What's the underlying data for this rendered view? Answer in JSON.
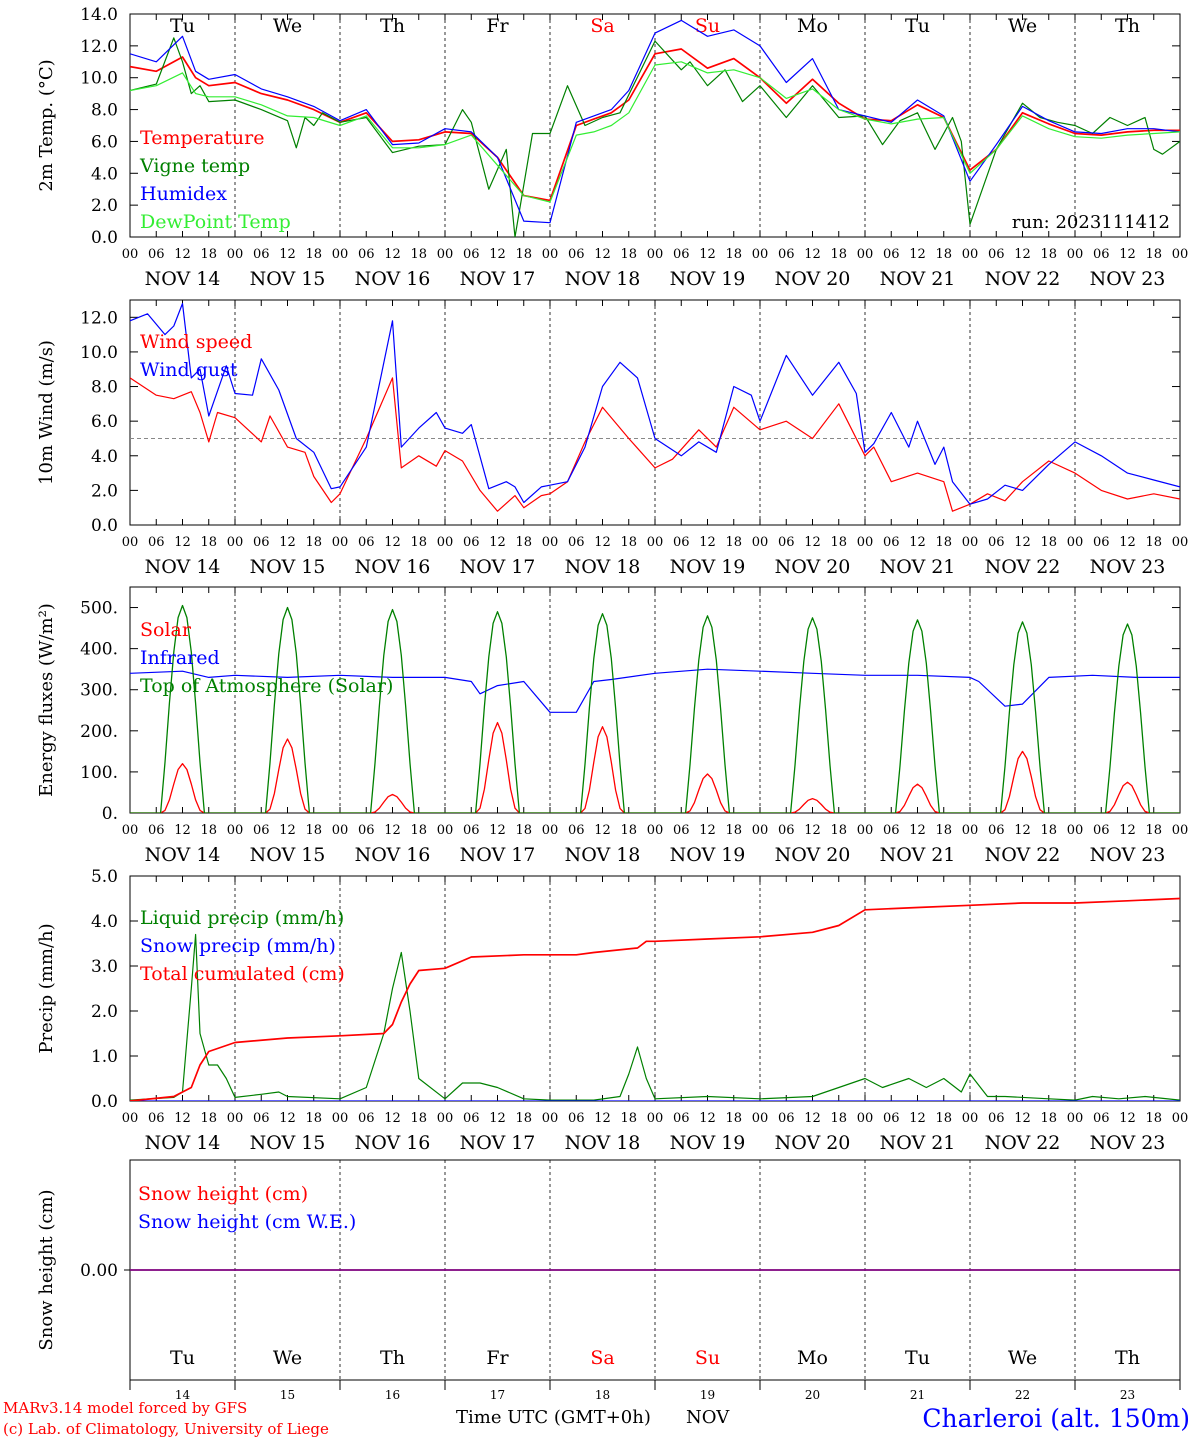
{
  "footer": {
    "credit_line1": "MARv3.14 model forced by GFS",
    "credit_line2": "(c) Lab. of Climatology, University of Liege",
    "xlabel": "Time UTC (GMT+0h)",
    "month": "NOV",
    "station": "Charleroi (alt. 150m)"
  },
  "run_label": "run: 2023111412",
  "days": [
    {
      "abbr": "Tu",
      "date": "NOV 14",
      "num": "14",
      "weekend": false
    },
    {
      "abbr": "We",
      "date": "NOV 15",
      "num": "15",
      "weekend": false
    },
    {
      "abbr": "Th",
      "date": "NOV 16",
      "num": "16",
      "weekend": false
    },
    {
      "abbr": "Fr",
      "date": "NOV 17",
      "num": "17",
      "weekend": false
    },
    {
      "abbr": "Sa",
      "date": "NOV 18",
      "num": "18",
      "weekend": true
    },
    {
      "abbr": "Su",
      "date": "NOV 19",
      "num": "19",
      "weekend": true
    },
    {
      "abbr": "Mo",
      "date": "NOV 20",
      "num": "20",
      "weekend": false
    },
    {
      "abbr": "Tu",
      "date": "NOV 21",
      "num": "21",
      "weekend": false
    },
    {
      "abbr": "We",
      "date": "NOV 22",
      "num": "22",
      "weekend": false
    },
    {
      "abbr": "Th",
      "date": "NOV 23",
      "num": "23",
      "weekend": false
    }
  ],
  "hour_ticks": [
    "00",
    "06",
    "12",
    "18"
  ],
  "colors": {
    "red": "#ff0000",
    "darkgreen": "#008000",
    "blue": "#0000ff",
    "lightgreen": "#33ee33",
    "grey": "#888888",
    "purple": "#7f007f",
    "weekend": "#ff0000"
  },
  "chart_data": [
    {
      "type": "line",
      "ylabel": "2m Temp. (°C)",
      "x_unit": "hours since NOV 14 00 UTC",
      "ylim": [
        0,
        14
      ],
      "yticks": [
        "0.0",
        "2.0",
        "4.0",
        "6.0",
        "8.0",
        "10.0",
        "12.0",
        "14.0"
      ],
      "series": [
        {
          "name": "Temperature",
          "color": "red",
          "x": [
            0,
            6,
            12,
            15,
            18,
            24,
            30,
            36,
            42,
            48,
            54,
            60,
            66,
            72,
            78,
            84,
            90,
            96,
            102,
            106,
            110,
            114,
            120,
            126,
            132,
            138,
            144,
            150,
            156,
            162,
            168,
            174,
            180,
            186,
            192,
            198,
            204,
            210,
            216,
            222,
            228,
            234,
            240
          ],
          "y": [
            10.7,
            10.4,
            11.3,
            10.0,
            9.5,
            9.7,
            9.0,
            8.6,
            8.0,
            7.2,
            7.8,
            6.0,
            6.1,
            6.6,
            6.5,
            5.0,
            2.6,
            2.3,
            7.0,
            7.4,
            7.8,
            8.6,
            11.5,
            11.8,
            10.6,
            11.2,
            10.0,
            8.4,
            9.9,
            8.4,
            7.4,
            7.3,
            8.3,
            7.5,
            4.2,
            5.5,
            7.8,
            7.1,
            6.5,
            6.4,
            6.6,
            6.7,
            6.7
          ]
        },
        {
          "name": "Vigne temp",
          "color": "darkgreen",
          "x": [
            0,
            6,
            10,
            12,
            14,
            16,
            18,
            24,
            30,
            36,
            38,
            40,
            42,
            44,
            48,
            54,
            60,
            66,
            72,
            76,
            78,
            82,
            86,
            88,
            92,
            96,
            100,
            104,
            108,
            112,
            120,
            126,
            128,
            132,
            136,
            140,
            144,
            150,
            156,
            162,
            168,
            172,
            176,
            180,
            184,
            188,
            190,
            192,
            198,
            204,
            208,
            212,
            216,
            220,
            224,
            228,
            232,
            234,
            236,
            240
          ],
          "y": [
            9.2,
            9.6,
            12.5,
            11.0,
            9.0,
            9.5,
            8.5,
            8.6,
            8.0,
            7.3,
            5.6,
            7.5,
            7.0,
            7.8,
            7.2,
            7.5,
            5.3,
            5.7,
            5.8,
            8.0,
            7.2,
            3.0,
            5.5,
            0.0,
            6.5,
            6.5,
            9.5,
            7.0,
            7.5,
            7.8,
            12.3,
            10.5,
            11.0,
            9.5,
            10.5,
            8.5,
            9.5,
            7.5,
            9.5,
            7.5,
            7.6,
            5.8,
            7.3,
            7.8,
            5.5,
            7.5,
            6.0,
            0.8,
            5.5,
            8.4,
            7.5,
            7.2,
            7.0,
            6.5,
            7.5,
            7.0,
            7.5,
            5.5,
            5.2,
            6.0
          ]
        },
        {
          "name": "Humidex",
          "color": "blue",
          "x": [
            0,
            6,
            12,
            15,
            18,
            24,
            30,
            36,
            42,
            48,
            54,
            60,
            66,
            72,
            78,
            84,
            90,
            96,
            102,
            106,
            110,
            114,
            120,
            126,
            132,
            138,
            144,
            150,
            156,
            162,
            168,
            174,
            180,
            186,
            192,
            198,
            204,
            210,
            216,
            222,
            228,
            234,
            240
          ],
          "y": [
            11.5,
            11.0,
            12.6,
            10.4,
            9.9,
            10.2,
            9.3,
            8.8,
            8.2,
            7.3,
            8.0,
            5.8,
            5.9,
            6.8,
            6.6,
            5.0,
            1.0,
            0.9,
            7.2,
            7.6,
            8.0,
            9.2,
            12.8,
            13.6,
            12.6,
            13.0,
            12.0,
            9.7,
            11.2,
            8.0,
            7.6,
            7.2,
            8.6,
            7.6,
            3.5,
            5.8,
            8.2,
            7.3,
            6.6,
            6.5,
            6.8,
            6.8,
            6.6
          ]
        },
        {
          "name": "DewPoint Temp",
          "color": "lightgreen",
          "x": [
            0,
            6,
            12,
            15,
            18,
            24,
            30,
            36,
            42,
            48,
            54,
            60,
            66,
            72,
            78,
            84,
            90,
            96,
            102,
            106,
            110,
            114,
            120,
            126,
            132,
            138,
            144,
            150,
            156,
            162,
            168,
            174,
            180,
            186,
            192,
            198,
            204,
            210,
            216,
            222,
            228,
            234,
            240
          ],
          "y": [
            9.2,
            9.5,
            10.3,
            9.0,
            8.8,
            8.8,
            8.3,
            7.6,
            7.5,
            7.0,
            7.6,
            5.6,
            5.6,
            5.8,
            6.4,
            4.5,
            2.6,
            2.2,
            6.4,
            6.6,
            7.0,
            7.8,
            10.8,
            11.0,
            10.3,
            10.5,
            10.0,
            8.7,
            9.3,
            8.0,
            7.4,
            7.1,
            7.4,
            7.5,
            4.0,
            5.5,
            7.6,
            6.8,
            6.3,
            6.2,
            6.4,
            6.5,
            6.6
          ]
        }
      ]
    },
    {
      "type": "line",
      "ylabel": "10m Wind (m/s)",
      "x_unit": "hours since NOV 14 00 UTC",
      "ylim": [
        0,
        13
      ],
      "yticks": [
        "0.0",
        "2.0",
        "4.0",
        "6.0",
        "8.0",
        "10.0",
        "12.0"
      ],
      "ref_line": 5,
      "series": [
        {
          "name": "Wind speed",
          "color": "red",
          "x": [
            0,
            6,
            10,
            14,
            16,
            18,
            20,
            24,
            30,
            32,
            36,
            40,
            42,
            46,
            48,
            54,
            60,
            62,
            66,
            70,
            72,
            76,
            80,
            84,
            88,
            90,
            94,
            96,
            100,
            104,
            108,
            114,
            120,
            124,
            130,
            134,
            138,
            144,
            150,
            156,
            162,
            168,
            170,
            174,
            180,
            186,
            188,
            192,
            196,
            200,
            204,
            210,
            216,
            222,
            228,
            234,
            240
          ],
          "y": [
            8.5,
            7.5,
            7.3,
            7.7,
            6.5,
            4.8,
            6.5,
            6.2,
            4.8,
            6.3,
            4.5,
            4.2,
            2.8,
            1.3,
            1.8,
            5.0,
            8.5,
            3.3,
            4.0,
            3.4,
            4.3,
            3.7,
            2.0,
            0.8,
            1.7,
            1.0,
            1.7,
            1.8,
            2.5,
            4.8,
            6.8,
            5.0,
            3.3,
            3.8,
            5.5,
            4.5,
            6.8,
            5.5,
            6.0,
            5.0,
            7.0,
            4.0,
            4.5,
            2.5,
            3.0,
            2.5,
            0.8,
            1.2,
            1.8,
            1.4,
            2.5,
            3.7,
            3.0,
            2.0,
            1.5,
            1.8,
            1.5
          ]
        },
        {
          "name": "Wind gust",
          "color": "blue",
          "x": [
            0,
            4,
            8,
            10,
            12,
            14,
            16,
            18,
            22,
            24,
            28,
            30,
            34,
            38,
            42,
            46,
            48,
            54,
            60,
            62,
            66,
            70,
            72,
            76,
            78,
            82,
            86,
            88,
            90,
            94,
            96,
            100,
            104,
            108,
            112,
            116,
            120,
            126,
            130,
            134,
            138,
            142,
            144,
            150,
            156,
            162,
            166,
            168,
            170,
            174,
            178,
            180,
            184,
            186,
            188,
            192,
            196,
            200,
            204,
            210,
            216,
            222,
            228,
            234,
            240
          ],
          "y": [
            11.8,
            12.2,
            11.0,
            11.5,
            12.8,
            8.5,
            9.0,
            6.3,
            9.2,
            7.6,
            7.5,
            9.6,
            7.8,
            5.0,
            4.2,
            2.1,
            2.2,
            4.5,
            11.8,
            4.5,
            5.6,
            6.5,
            5.6,
            5.3,
            5.8,
            2.1,
            2.5,
            2.2,
            1.3,
            2.2,
            2.3,
            2.5,
            4.5,
            8.0,
            9.4,
            8.5,
            5.0,
            4.0,
            4.8,
            4.2,
            8.0,
            7.5,
            6.0,
            9.8,
            7.5,
            9.4,
            7.6,
            4.2,
            4.7,
            6.5,
            4.5,
            6.0,
            3.5,
            4.5,
            2.5,
            1.2,
            1.5,
            2.3,
            2.0,
            3.5,
            4.8,
            4.0,
            3.0,
            2.6,
            2.2
          ]
        }
      ]
    },
    {
      "type": "line",
      "ylabel": "Energy fluxes (W/m²)",
      "x_unit": "hours since NOV 14 00 UTC",
      "ylim": [
        0,
        550
      ],
      "yticks": [
        "0.",
        "100.",
        "200.",
        "300.",
        "400.",
        "500."
      ],
      "series": [
        {
          "name": "Solar",
          "color": "red",
          "peaks": [
            120,
            180,
            45,
            220,
            210,
            95,
            35,
            70,
            150,
            75
          ]
        },
        {
          "name": "Infrared",
          "color": "blue",
          "x": [
            0,
            12,
            18,
            24,
            36,
            48,
            60,
            72,
            78,
            80,
            84,
            90,
            96,
            102,
            106,
            110,
            120,
            132,
            144,
            156,
            168,
            180,
            192,
            194,
            200,
            204,
            210,
            220,
            230,
            240
          ],
          "y": [
            340,
            345,
            330,
            335,
            330,
            335,
            330,
            330,
            320,
            290,
            310,
            320,
            245,
            245,
            320,
            325,
            340,
            350,
            345,
            340,
            335,
            335,
            330,
            320,
            260,
            265,
            330,
            335,
            330,
            330
          ]
        },
        {
          "name": "Top of Atmosphere (Solar)",
          "color": "darkgreen",
          "peaks": [
            505,
            500,
            495,
            490,
            485,
            480,
            475,
            470,
            465,
            460
          ]
        }
      ]
    },
    {
      "type": "line",
      "ylabel": "Precip (mm/h)",
      "x_unit": "hours since NOV 14 00 UTC",
      "ylim": [
        0,
        5
      ],
      "yticks": [
        "0.0",
        "1.0",
        "2.0",
        "3.0",
        "4.0",
        "5.0"
      ],
      "series": [
        {
          "name": "Liquid precip (mm/h)",
          "color": "darkgreen",
          "x": [
            0,
            10,
            12,
            14,
            15,
            16,
            18,
            20,
            22,
            24,
            30,
            34,
            36,
            48,
            54,
            58,
            60,
            62,
            64,
            66,
            72,
            76,
            80,
            84,
            90,
            96,
            106,
            112,
            114,
            116,
            118,
            120,
            132,
            144,
            156,
            162,
            168,
            172,
            178,
            182,
            186,
            190,
            192,
            196,
            200,
            210,
            216,
            220,
            226,
            232,
            240
          ],
          "y": [
            0.02,
            0.08,
            0.2,
            2.5,
            3.7,
            1.5,
            0.8,
            0.8,
            0.5,
            0.08,
            0.15,
            0.2,
            0.1,
            0.05,
            0.3,
            1.5,
            2.5,
            3.3,
            2.0,
            0.5,
            0.05,
            0.4,
            0.4,
            0.3,
            0.05,
            0.02,
            0.02,
            0.1,
            0.6,
            1.2,
            0.5,
            0.05,
            0.1,
            0.05,
            0.1,
            0.3,
            0.5,
            0.3,
            0.5,
            0.3,
            0.5,
            0.2,
            0.6,
            0.1,
            0.1,
            0.05,
            0.02,
            0.1,
            0.05,
            0.1,
            0.02
          ]
        },
        {
          "name": "Snow precip (mm/h)",
          "color": "blue",
          "x": [
            0,
            240
          ],
          "y": [
            0,
            0
          ]
        },
        {
          "name": "Total cumulated (cm)",
          "color": "red",
          "x": [
            0,
            10,
            14,
            16,
            18,
            24,
            36,
            48,
            58,
            60,
            62,
            64,
            66,
            72,
            78,
            90,
            102,
            106,
            116,
            118,
            120,
            132,
            144,
            156,
            162,
            168,
            180,
            192,
            204,
            216,
            228,
            240
          ],
          "y": [
            0,
            0.1,
            0.3,
            0.8,
            1.1,
            1.3,
            1.4,
            1.45,
            1.5,
            1.7,
            2.2,
            2.6,
            2.9,
            2.95,
            3.2,
            3.25,
            3.25,
            3.3,
            3.4,
            3.55,
            3.55,
            3.6,
            3.65,
            3.75,
            3.9,
            4.25,
            4.3,
            4.35,
            4.4,
            4.4,
            4.45,
            4.5
          ]
        }
      ]
    },
    {
      "type": "line",
      "ylabel": "Snow height (cm)",
      "x_unit": "hours since NOV 14 00 UTC",
      "ylim": [
        -1,
        1
      ],
      "yticks": [
        "0.00"
      ],
      "series": [
        {
          "name": "Snow height (cm)",
          "color": "red",
          "x": [
            0,
            240
          ],
          "y": [
            0,
            0
          ]
        },
        {
          "name": "Snow height (cm W.E.)",
          "color": "blue",
          "x": [
            0,
            240
          ],
          "y": [
            0,
            0
          ]
        }
      ]
    }
  ]
}
